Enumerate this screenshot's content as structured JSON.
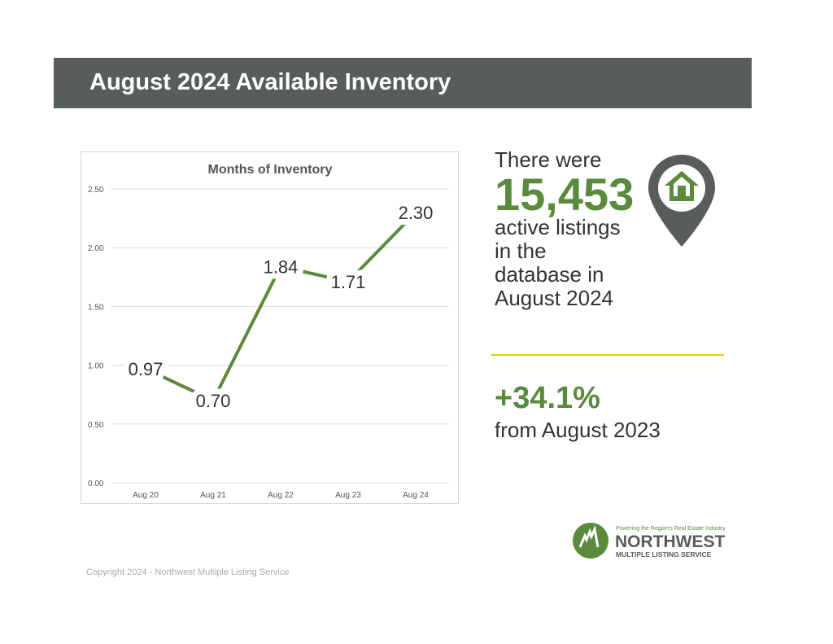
{
  "header": {
    "title": "August 2024 Available Inventory"
  },
  "stat": {
    "line1": "There were",
    "count": "15,453",
    "line2": "active listings",
    "line3": "in the",
    "line4": "database in",
    "line5": "August 2024"
  },
  "change": {
    "value": "+34.1%",
    "label": "from August 2023"
  },
  "logo": {
    "tagline": "Powering the Region's Real Estate Industry",
    "name": "NORTHWEST",
    "sub": "MULTIPLE LISTING SERVICE"
  },
  "footer": {
    "copyright": "Copyright 2024 - Northwest Multiple Listing Service"
  },
  "colors": {
    "banner": "#575d5a",
    "accent": "#5a8a3c",
    "divider": "#f2cc00"
  },
  "chart_data": {
    "type": "line",
    "title": "Months of Inventory",
    "categories": [
      "Aug 20",
      "Aug 21",
      "Aug 22",
      "Aug 23",
      "Aug 24"
    ],
    "values": [
      0.97,
      0.7,
      1.84,
      1.71,
      2.3
    ],
    "labels": [
      "0.97",
      "0.70",
      "1.84",
      "1.71",
      "2.30"
    ],
    "yticks": [
      "0.00",
      "0.50",
      "1.00",
      "1.50",
      "2.00",
      "2.50"
    ],
    "ylim": [
      0,
      2.5
    ],
    "grid": true,
    "legend": "none"
  }
}
